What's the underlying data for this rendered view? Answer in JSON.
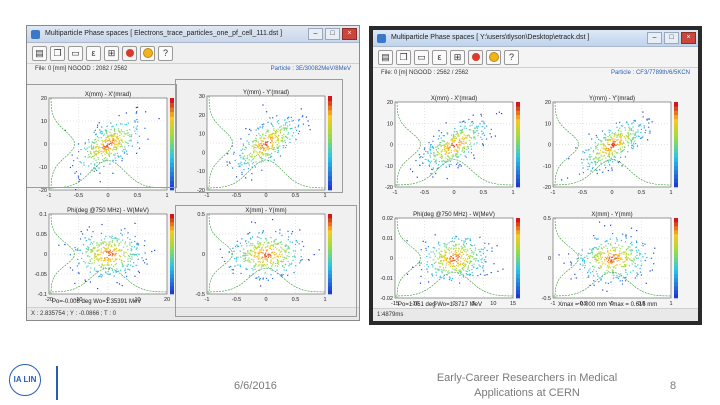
{
  "left_window": {
    "title": "Multiparticle Phase spaces [ Electrons_trace_particles_one_pf_cell_111.dst ]",
    "toolbar_icons": [
      "open-icon",
      "copy-icon",
      "save-icon",
      "epsilon-icon",
      "grid-icon",
      "record-icon",
      "sun-icon",
      "help-icon"
    ],
    "info_left": "File: 0 [mm]   NGOOD : 2082 / 2562",
    "info_right": "Particle : 3E/30082MeV/8MeV",
    "plot_labels": [
      "X(mm) - X'(mrad)",
      "Y(mm) - Y'(mrad)",
      "Phi(deg @750 MHz) - W(MeV)",
      "X(mm) - Y(mm)"
    ],
    "bottom_note": "Po=-0.008 deg   Wo=1.35391 MeV",
    "status": "X : 2.835754 ; Y : -0.0866 ; T : 0"
  },
  "right_window": {
    "title": "Multiparticle Phase spaces [ Y:\\users\\tlyson\\Desktop\\etrack.dst ]",
    "toolbar_icons": [
      "open-icon",
      "copy-icon",
      "save-icon",
      "epsilon-icon",
      "grid-icon",
      "record-icon",
      "sun-icon",
      "help-icon"
    ],
    "info_left": "File: 0 [m]   NGOOD : 2562 / 2562",
    "info_right": "Particle : CF3/7789th/6/5KCN",
    "plot_labels": [
      "X(mm) - X'(mrad)",
      "Y(mm) - Y'(mrad)",
      "Phi(deg @750 MHz) - W(MeV)",
      "X(mm) - Y(mm)"
    ],
    "bottom_note": "Po=1.051 deg   Wo=1.3717 MeV",
    "bottom_note2": "Xmax = 0.000 mm   Ymax = 0.616 mm",
    "status": "1:4879ms"
  },
  "footer": {
    "logo": "IA LIN",
    "date": "6/6/2016",
    "title_line1": "Early-Career Researchers in Medical",
    "title_line2": "Applications at CERN",
    "page": "8"
  },
  "colors": {
    "accent": "#2a5fb0",
    "scatter_low": "#1f3bd6",
    "scatter_high": "#d3161a",
    "profile": "#2f9a2f"
  }
}
